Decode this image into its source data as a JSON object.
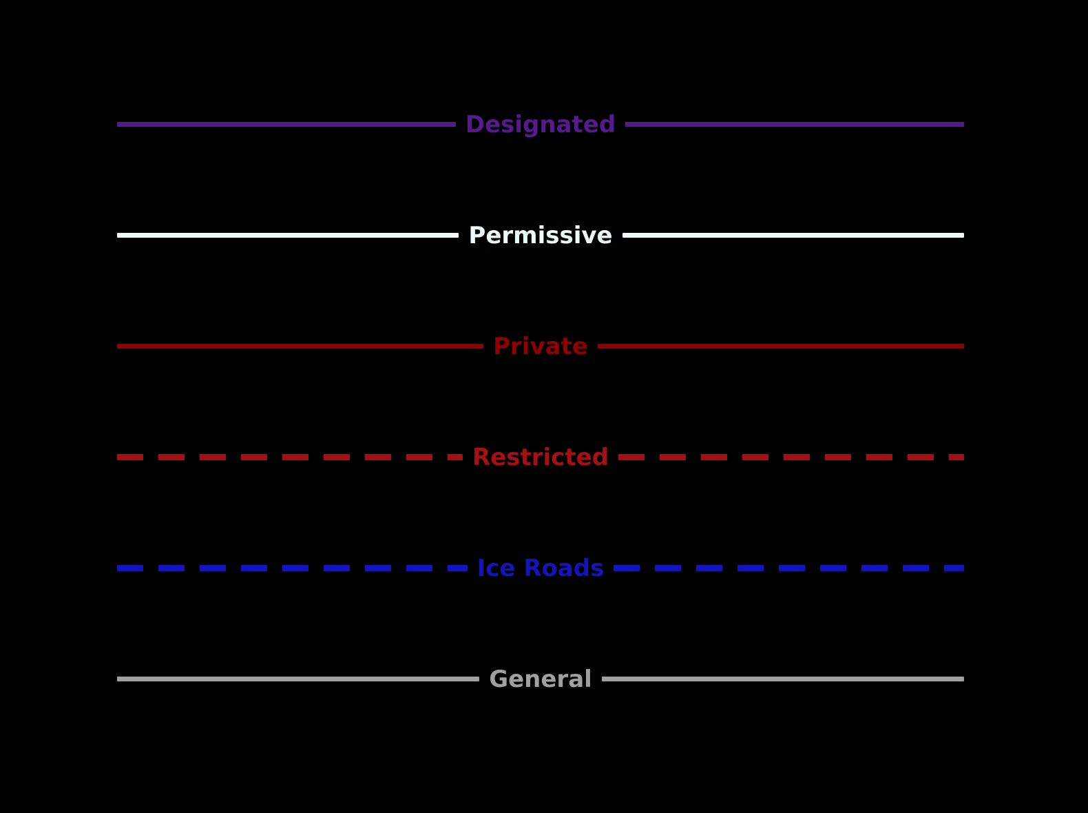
{
  "legend": {
    "background": "#000000",
    "items": [
      {
        "label": "Designated",
        "color": "#551a8b",
        "style": "solid"
      },
      {
        "label": "Permissive",
        "color": "#ecfbfa",
        "style": "solid"
      },
      {
        "label": "Private",
        "color": "#8f0000",
        "style": "solid"
      },
      {
        "label": "Restricted",
        "color": "#a50f15",
        "style": "dashed"
      },
      {
        "label": "Ice Roads",
        "color": "#1414b8",
        "style": "dashed"
      },
      {
        "label": "General",
        "color": "#a0a0a0",
        "style": "solid"
      }
    ]
  }
}
